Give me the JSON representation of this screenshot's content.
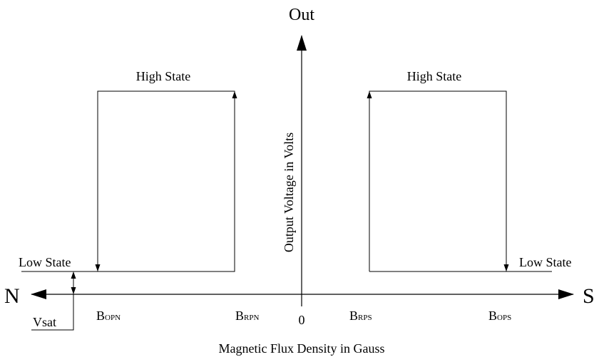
{
  "axis": {
    "y_top_label": "Out",
    "y_label": "Output Voltage in Volts",
    "x_label": "Magnetic Flux Density in Gauss",
    "left_pole": "N",
    "right_pole": "S",
    "origin": "0"
  },
  "states": {
    "high_left": "High State",
    "high_right": "High State",
    "low_left": "Low State",
    "low_right": "Low State",
    "vsat": "Vsat"
  },
  "points": {
    "bopn": {
      "main": "B",
      "sub": "OPN"
    },
    "brpn": {
      "main": "B",
      "sub": "RPN"
    },
    "brps": {
      "main": "B",
      "sub": "RPS"
    },
    "bops": {
      "main": "B",
      "sub": "OPS"
    }
  }
}
